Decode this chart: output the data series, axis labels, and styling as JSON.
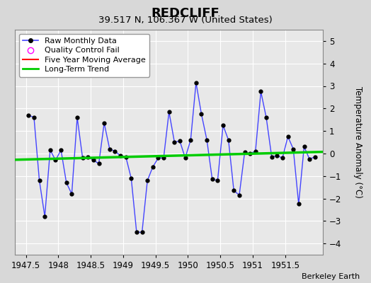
{
  "title": "REDCLIFF",
  "subtitle": "39.517 N, 106.367 W (United States)",
  "ylabel": "Temperature Anomaly (°C)",
  "credit": "Berkeley Earth",
  "xlim": [
    1947.33,
    1952.08
  ],
  "ylim": [
    -4.5,
    5.5
  ],
  "yticks": [
    -4,
    -3,
    -2,
    -1,
    0,
    1,
    2,
    3,
    4,
    5
  ],
  "xticks": [
    1947.5,
    1948.0,
    1948.5,
    1949.0,
    1949.5,
    1950.0,
    1950.5,
    1951.0,
    1951.5
  ],
  "xticklabels": [
    "1947.5",
    "1948",
    "1948.5",
    "1949",
    "1949.5",
    "1950",
    "1950.5",
    "1951",
    "1951.5"
  ],
  "bg_color": "#d8d8d8",
  "plot_bg_color": "#e8e8e8",
  "grid_color": "white",
  "raw_line_color": "#4444ff",
  "marker_color": "black",
  "marker_size": 3.5,
  "trend_color": "#00cc00",
  "trend_linewidth": 2.5,
  "raw_linewidth": 1.0,
  "raw_x": [
    1947.542,
    1947.625,
    1947.708,
    1947.792,
    1947.875,
    1947.958,
    1948.042,
    1948.125,
    1948.208,
    1948.292,
    1948.375,
    1948.458,
    1948.542,
    1948.625,
    1948.708,
    1948.792,
    1948.875,
    1948.958,
    1949.042,
    1949.125,
    1949.208,
    1949.292,
    1949.375,
    1949.458,
    1949.542,
    1949.625,
    1949.708,
    1949.792,
    1949.875,
    1949.958,
    1950.042,
    1950.125,
    1950.208,
    1950.292,
    1950.375,
    1950.458,
    1950.542,
    1950.625,
    1950.708,
    1950.792,
    1950.875,
    1950.958,
    1951.042,
    1951.125,
    1951.208,
    1951.292,
    1951.375,
    1951.458,
    1951.542,
    1951.625,
    1951.708,
    1951.792,
    1951.875,
    1951.958
  ],
  "raw_y": [
    1.7,
    1.6,
    -1.2,
    -2.8,
    0.15,
    -0.3,
    0.15,
    -1.3,
    -1.8,
    1.6,
    -0.2,
    -0.15,
    -0.3,
    -0.45,
    1.35,
    0.2,
    0.1,
    -0.1,
    -0.15,
    -1.1,
    -3.5,
    -3.5,
    -1.2,
    -0.6,
    -0.2,
    -0.2,
    1.85,
    0.5,
    0.55,
    -0.2,
    0.6,
    3.15,
    1.75,
    0.6,
    -1.15,
    -1.2,
    1.25,
    0.6,
    -1.65,
    -1.85,
    0.05,
    0.0,
    0.1,
    2.75,
    1.6,
    -0.15,
    -0.1,
    -0.2,
    0.75,
    0.2,
    -2.25,
    0.3,
    -0.25,
    -0.15
  ],
  "trend_x": [
    1947.33,
    1952.08
  ],
  "trend_y": [
    -0.28,
    0.07
  ],
  "title_fontsize": 13,
  "subtitle_fontsize": 9.5,
  "tick_fontsize": 8.5,
  "ylabel_fontsize": 8.5,
  "legend_fontsize": 8,
  "credit_fontsize": 8
}
